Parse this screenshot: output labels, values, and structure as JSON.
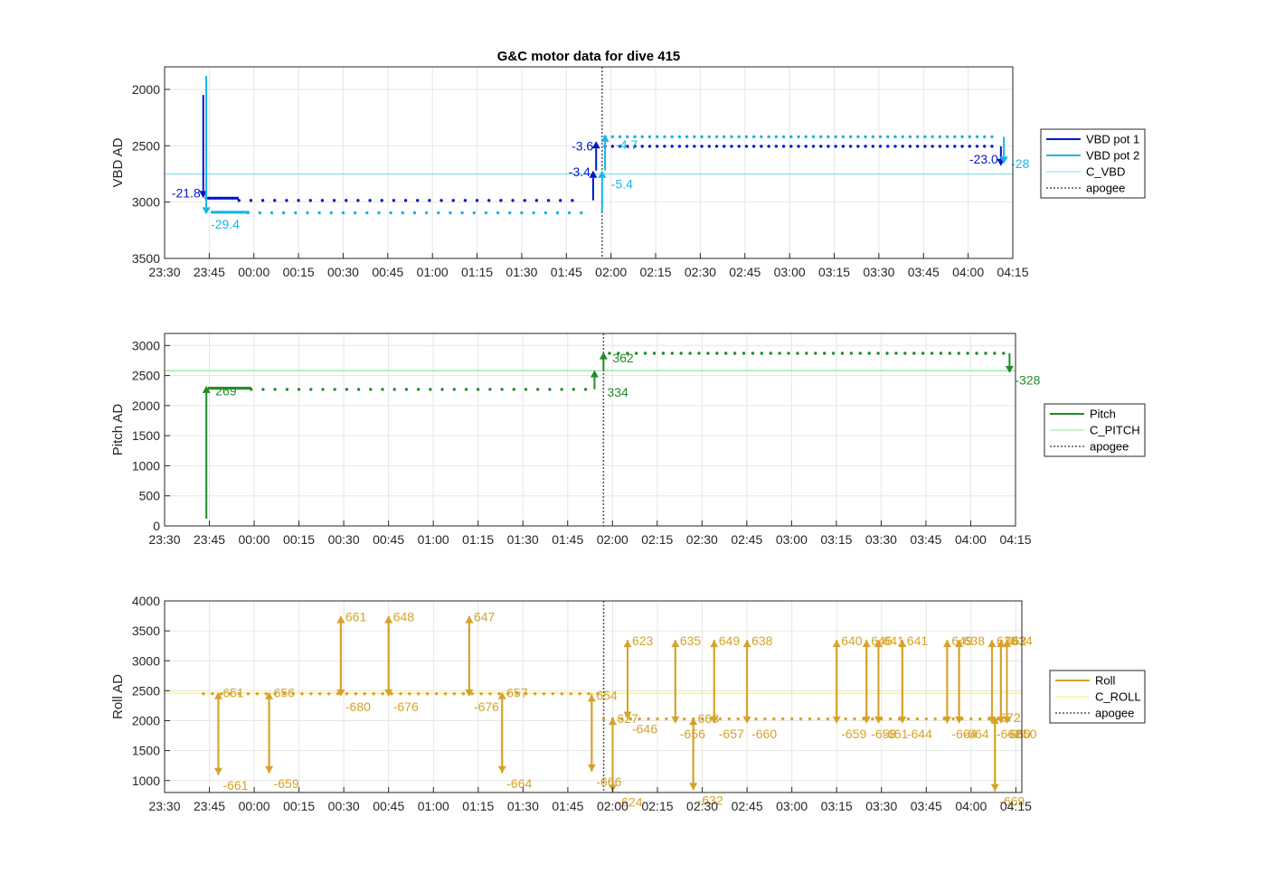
{
  "title": "G&C motor data for dive 415",
  "x_ticks": [
    "23:30",
    "23:45",
    "00:00",
    "00:15",
    "00:30",
    "00:45",
    "01:00",
    "01:15",
    "01:30",
    "01:45",
    "02:00",
    "02:15",
    "02:30",
    "02:45",
    "03:00",
    "03:15",
    "03:30",
    "03:45",
    "04:00",
    "04:15"
  ],
  "colors": {
    "vbd1": "#0016c8",
    "vbd2": "#17b6e6",
    "cvbd": "#7fe0ee",
    "pitch": "#1e8c28",
    "cpitch": "#8fe89a",
    "roll": "#d6a22a",
    "croll": "#f5ef7a",
    "apogee": "#555555",
    "grid": "#e6e6e6"
  },
  "chart_data": [
    {
      "type": "line",
      "title": "G&C motor data for dive 415",
      "xlabel": "",
      "ylabel": "VBD AD",
      "xlim": [
        "23:30",
        "04:15"
      ],
      "ylim": [
        3500,
        1800
      ],
      "y_reversed": true,
      "yticks": [
        "2000",
        "2500",
        "3000",
        "3500"
      ],
      "legend_position": "right",
      "legend": [
        "VBD pot 1",
        "VBD pot 2",
        "C_VBD",
        "apogee"
      ],
      "apogee_time": "01:57",
      "reference_lines": [
        {
          "name": "C_VBD",
          "value": 2750
        }
      ],
      "series": [
        {
          "name": "VBD pot 1",
          "dots": [
            {
              "from": "23:44",
              "to": "23:55",
              "value": 2965,
              "step_min": 0.8
            },
            {
              "from": "23:55",
              "to": "01:50",
              "value": 2985,
              "step_min": 4
            },
            {
              "from": "01:58",
              "to": "04:10",
              "value": 2505,
              "step_min": 2.5
            }
          ],
          "moves": [
            {
              "time": "23:43",
              "from": 2050,
              "to": 2965,
              "label": "-21.8"
            },
            {
              "time": "01:54",
              "from": 2985,
              "to": 2720,
              "label": "-3.4"
            },
            {
              "time": "01:55",
              "from": 2720,
              "to": 2460,
              "label": "-3.6"
            },
            {
              "time": "04:11",
              "from": 2505,
              "to": 2680,
              "label": "-23.0"
            }
          ]
        },
        {
          "name": "VBD pot 2",
          "dots": [
            {
              "from": "23:46",
              "to": "23:58",
              "value": 3090,
              "step_min": 0.8
            },
            {
              "from": "23:58",
              "to": "01:50",
              "value": 3095,
              "step_min": 4
            },
            {
              "from": "01:58",
              "to": "04:10",
              "value": 2420,
              "step_min": 2.5
            }
          ],
          "moves": [
            {
              "time": "23:44",
              "from": 1880,
              "to": 3110,
              "label": "-29.4"
            },
            {
              "time": "01:57",
              "from": 3085,
              "to": 2720,
              "label": "-5.4"
            },
            {
              "time": "01:58",
              "from": 2720,
              "to": 2400,
              "label": "-4.7"
            },
            {
              "time": "04:12",
              "from": 2420,
              "to": 2660,
              "label": "-28"
            }
          ]
        }
      ]
    },
    {
      "type": "line",
      "xlabel": "",
      "ylabel": "Pitch AD",
      "xlim": [
        "23:30",
        "04:15"
      ],
      "ylim": [
        0,
        3200
      ],
      "yticks": [
        "0",
        "500",
        "1000",
        "1500",
        "2000",
        "2500",
        "3000"
      ],
      "legend_position": "right",
      "legend": [
        "Pitch",
        "C_PITCH",
        "apogee"
      ],
      "apogee_time": "01:57",
      "reference_lines": [
        {
          "name": "C_PITCH",
          "value": 2580
        }
      ],
      "series": [
        {
          "name": "Pitch",
          "dots": [
            {
              "from": "23:45",
              "to": "23:59",
              "value": 2290,
              "step_min": 0.8
            },
            {
              "from": "23:59",
              "to": "01:52",
              "value": 2270,
              "step_min": 4
            },
            {
              "from": "01:59",
              "to": "04:12",
              "value": 2870,
              "step_min": 3
            }
          ],
          "moves": [
            {
              "time": "23:44",
              "from": 120,
              "to": 2330,
              "label": "269"
            },
            {
              "time": "01:54",
              "from": 2270,
              "to": 2590,
              "label": "334"
            },
            {
              "time": "01:57",
              "from": 2590,
              "to": 2890,
              "label": "362"
            },
            {
              "time": "04:13",
              "from": 2870,
              "to": 2540,
              "label": "-328"
            }
          ]
        }
      ]
    },
    {
      "type": "line",
      "xlabel": "",
      "ylabel": "Roll AD",
      "xlim": [
        "23:30",
        "04:17"
      ],
      "ylim": [
        800,
        4000
      ],
      "yticks": [
        "1000",
        "1500",
        "2000",
        "2500",
        "3000",
        "3500",
        "4000"
      ],
      "legend_position": "right",
      "legend": [
        "Roll",
        "C_ROLL",
        "apogee"
      ],
      "apogee_time": "01:57",
      "reference_lines": [
        {
          "name": "C_ROLL",
          "value": 2460
        }
      ],
      "series": [
        {
          "name": "Roll",
          "dots": [
            {
              "from": "23:43",
              "to": "01:55",
              "value": 2450,
              "step_min": 3
            },
            {
              "from": "01:57",
              "to": "04:14",
              "value": 2030,
              "step_min": 3
            }
          ],
          "moves": [
            {
              "time": "23:48",
              "from": 2450,
              "to": 1090,
              "label": "-661"
            },
            {
              "time": "23:48",
              "from": 1090,
              "to": 2480,
              "label": "651"
            },
            {
              "time": "00:05",
              "from": 2450,
              "to": 1120,
              "label": "-659"
            },
            {
              "time": "00:05",
              "from": 1120,
              "to": 2480,
              "label": "656"
            },
            {
              "time": "00:29",
              "from": 2450,
              "to": 3750,
              "label": "661"
            },
            {
              "time": "00:29",
              "from": 3750,
              "to": 2400,
              "label": "-680"
            },
            {
              "time": "00:45",
              "from": 2450,
              "to": 3750,
              "label": "648"
            },
            {
              "time": "00:45",
              "from": 3750,
              "to": 2400,
              "label": "-676"
            },
            {
              "time": "01:12",
              "from": 2450,
              "to": 3750,
              "label": "647"
            },
            {
              "time": "01:12",
              "from": 3750,
              "to": 2400,
              "label": "-676"
            },
            {
              "time": "01:23",
              "from": 2450,
              "to": 1120,
              "label": "-664"
            },
            {
              "time": "01:23",
              "from": 1120,
              "to": 2480,
              "label": "657"
            },
            {
              "time": "01:53",
              "from": 2450,
              "to": 1150,
              "label": "-666"
            },
            {
              "time": "01:53",
              "from": 1150,
              "to": 2440,
              "label": "654"
            },
            {
              "time": "02:00",
              "from": 2020,
              "to": 810,
              "label": "-624"
            },
            {
              "time": "02:00",
              "from": 810,
              "to": 2050,
              "label": "627"
            },
            {
              "time": "02:05",
              "from": 2030,
              "to": 3350,
              "label": "623"
            },
            {
              "time": "02:05",
              "from": 3350,
              "to": 2030,
              "label": "-646"
            },
            {
              "time": "02:21",
              "from": 2030,
              "to": 3350,
              "label": "635"
            },
            {
              "time": "02:21",
              "from": 3350,
              "to": 1950,
              "label": "-656"
            },
            {
              "time": "02:27",
              "from": 2030,
              "to": 840,
              "label": "-632"
            },
            {
              "time": "02:27",
              "from": 840,
              "to": 2050,
              "label": "663"
            },
            {
              "time": "02:34",
              "from": 2030,
              "to": 3350,
              "label": "649"
            },
            {
              "time": "02:34",
              "from": 3350,
              "to": 1950,
              "label": "-657"
            },
            {
              "time": "02:45",
              "from": 2030,
              "to": 3350,
              "label": "638"
            },
            {
              "time": "02:45",
              "from": 3350,
              "to": 1950,
              "label": "-660"
            },
            {
              "time": "03:15",
              "from": 2030,
              "to": 3350,
              "label": "640"
            },
            {
              "time": "03:15",
              "from": 3350,
              "to": 1950,
              "label": "-659"
            },
            {
              "time": "03:25",
              "from": 2030,
              "to": 3350,
              "label": "646"
            },
            {
              "time": "03:25",
              "from": 3350,
              "to": 1950,
              "label": "-658"
            },
            {
              "time": "03:29",
              "from": 2030,
              "to": 3350,
              "label": "641"
            },
            {
              "time": "03:29",
              "from": 3350,
              "to": 1950,
              "label": "-661"
            },
            {
              "time": "03:37",
              "from": 2030,
              "to": 3350,
              "label": "641"
            },
            {
              "time": "03:37",
              "from": 3350,
              "to": 1950,
              "label": "-644"
            },
            {
              "time": "03:52",
              "from": 2030,
              "to": 3350,
              "label": "649"
            },
            {
              "time": "03:52",
              "from": 3350,
              "to": 1950,
              "label": "-664"
            },
            {
              "time": "03:56",
              "from": 2030,
              "to": 3350,
              "label": "638"
            },
            {
              "time": "03:56",
              "from": 3350,
              "to": 1950,
              "label": "-664"
            },
            {
              "time": "04:07",
              "from": 2030,
              "to": 3350,
              "label": "638"
            },
            {
              "time": "04:07",
              "from": 3350,
              "to": 1950,
              "label": "-662"
            },
            {
              "time": "04:08",
              "from": 2030,
              "to": 820,
              "label": "-669"
            },
            {
              "time": "04:08",
              "from": 820,
              "to": 2070,
              "label": "672"
            },
            {
              "time": "04:10",
              "from": 2030,
              "to": 3350,
              "label": "662"
            },
            {
              "time": "04:10",
              "from": 3350,
              "to": 1950,
              "label": "-660"
            },
            {
              "time": "04:12",
              "from": 2030,
              "to": 3350,
              "label": "634"
            },
            {
              "time": "04:12",
              "from": 3350,
              "to": 1950,
              "label": "-650"
            }
          ]
        }
      ]
    }
  ]
}
